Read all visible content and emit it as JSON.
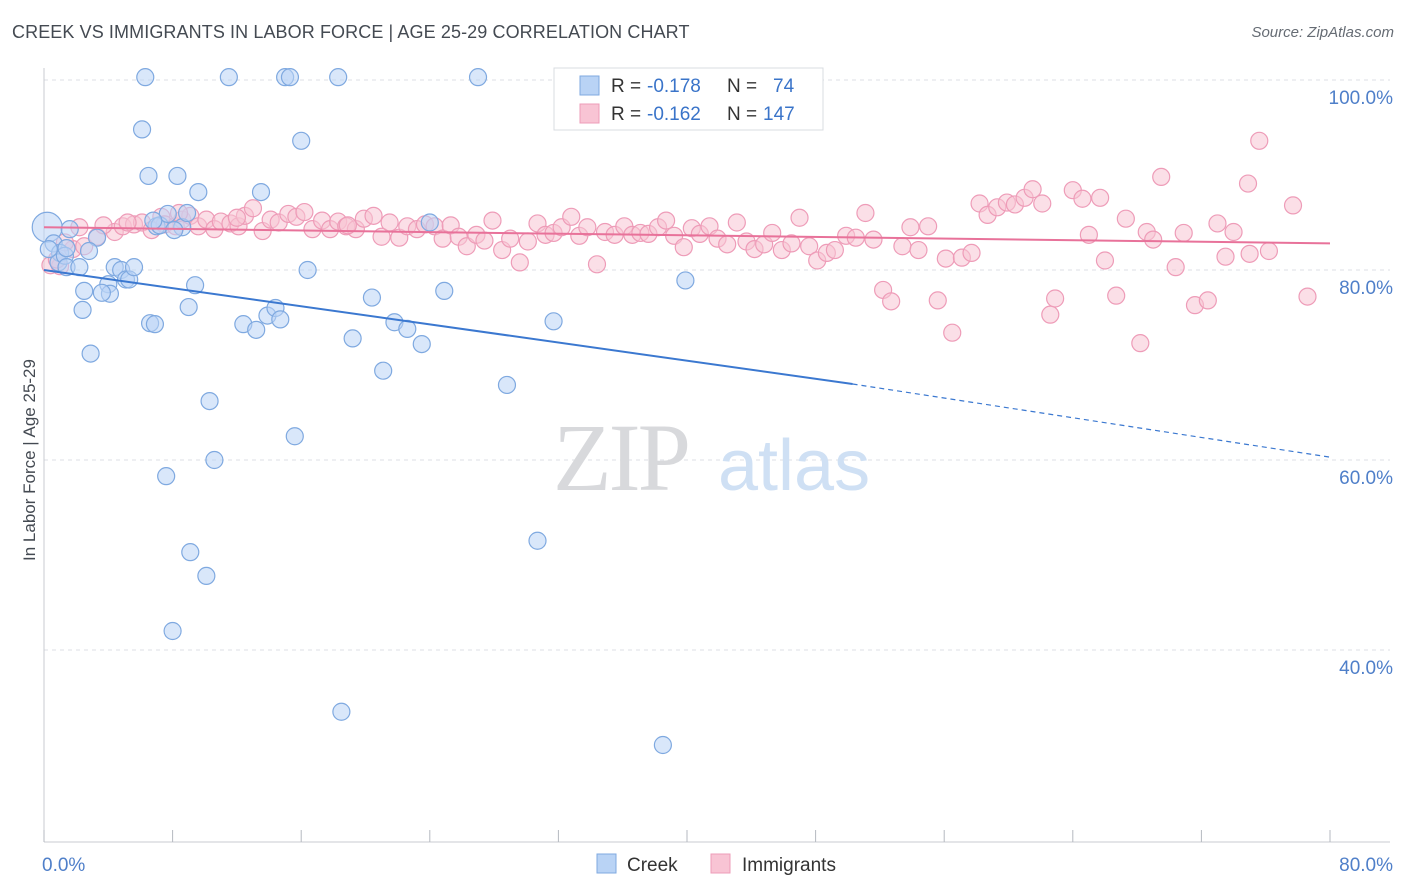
{
  "title": "CREEK VS IMMIGRANTS IN LABOR FORCE | AGE 25-29 CORRELATION CHART",
  "source": "Source: ZipAtlas.com",
  "watermark": {
    "zip": "ZIP",
    "atlas": "atlas"
  },
  "colors": {
    "creek_fill": "#b9d3f5",
    "creek_stroke": "#7fa9e0",
    "creek_line": "#3b78d0",
    "imm_fill": "#f8c4d4",
    "imm_stroke": "#ee9cb8",
    "imm_line": "#e8729a",
    "grid": "#dcdfe4",
    "tick_label": "#4f7fc9"
  },
  "legend": {
    "r_label": "R =",
    "n_label": "N =",
    "rows": [
      {
        "series": "creek",
        "r": "-0.178",
        "n": "74"
      },
      {
        "series": "imm",
        "r": "-0.162",
        "n": "147"
      }
    ]
  },
  "bottom_legend": [
    {
      "series": "creek",
      "label": "Creek"
    },
    {
      "series": "imm",
      "label": "Immigrants"
    }
  ],
  "chart_data": {
    "type": "scatter",
    "title": "CREEK VS IMMIGRANTS IN LABOR FORCE | AGE 25-29 CORRELATION CHART",
    "xlabel": "",
    "ylabel": "In Labor Force | Age 25-29",
    "xlim": [
      0,
      80
    ],
    "ylim": [
      20,
      104
    ],
    "x_tick_labels": [
      {
        "v": 0,
        "label": "0.0%"
      },
      {
        "v": 80,
        "label": "80.0%"
      }
    ],
    "y_tick_labels": [
      {
        "v": 100,
        "label": "100.0%"
      },
      {
        "v": 80,
        "label": "80.0%"
      },
      {
        "v": 60,
        "label": "60.0%"
      },
      {
        "v": 40,
        "label": "40.0%"
      }
    ],
    "y_grid": [
      100,
      80,
      60,
      40
    ],
    "x_minor_ticks": [
      0,
      8,
      16,
      24,
      32,
      40,
      48,
      56,
      64,
      72,
      80
    ],
    "series": [
      {
        "name": "Creek",
        "key": "creek",
        "trend": {
          "x0": 0,
          "y0": 80,
          "x1": 50.3,
          "y1": 68,
          "dash_x1": 80,
          "dash_y1": 60.3
        },
        "points": [
          [
            0.2,
            84.5
          ],
          [
            0.6,
            82.8
          ],
          [
            1.0,
            81.8
          ],
          [
            0.9,
            80.8
          ],
          [
            1.3,
            81.5
          ],
          [
            1.6,
            84.3
          ],
          [
            1.4,
            80.3
          ],
          [
            2.2,
            80.3
          ],
          [
            3.3,
            83.4
          ],
          [
            2.8,
            82.0
          ],
          [
            2.5,
            77.8
          ],
          [
            4.0,
            78.5
          ],
          [
            4.4,
            80.3
          ],
          [
            4.1,
            77.5
          ],
          [
            3.6,
            77.6
          ],
          [
            4.8,
            80.0
          ],
          [
            5.1,
            79.0
          ],
          [
            5.3,
            79.0
          ],
          [
            5.6,
            80.3
          ],
          [
            2.4,
            75.8
          ],
          [
            2.9,
            71.2
          ],
          [
            6.1,
            94.8
          ],
          [
            6.3,
            100.3
          ],
          [
            6.5,
            89.9
          ],
          [
            6.6,
            74.4
          ],
          [
            6.9,
            74.3
          ],
          [
            7.0,
            84.6
          ],
          [
            7.2,
            84.7
          ],
          [
            7.7,
            85.9
          ],
          [
            8.3,
            89.9
          ],
          [
            8.6,
            84.5
          ],
          [
            8.9,
            86.0
          ],
          [
            9.6,
            88.2
          ],
          [
            9.0,
            76.1
          ],
          [
            9.4,
            78.4
          ],
          [
            10.3,
            66.2
          ],
          [
            10.6,
            60.0
          ],
          [
            7.6,
            58.3
          ],
          [
            9.1,
            50.3
          ],
          [
            10.1,
            47.8
          ],
          [
            8.0,
            42.0
          ],
          [
            11.5,
            100.3
          ],
          [
            12.4,
            74.3
          ],
          [
            13.2,
            73.7
          ],
          [
            13.5,
            88.2
          ],
          [
            13.9,
            75.2
          ],
          [
            14.4,
            76.0
          ],
          [
            14.7,
            74.8
          ],
          [
            15.0,
            100.3
          ],
          [
            15.3,
            100.3
          ],
          [
            15.6,
            62.5
          ],
          [
            16.0,
            93.6
          ],
          [
            16.4,
            80.0
          ],
          [
            18.3,
            100.3
          ],
          [
            18.5,
            33.5
          ],
          [
            19.2,
            72.8
          ],
          [
            20.4,
            77.1
          ],
          [
            21.1,
            69.4
          ],
          [
            21.8,
            74.5
          ],
          [
            22.6,
            73.8
          ],
          [
            23.5,
            72.2
          ],
          [
            24.0,
            85.0
          ],
          [
            24.9,
            77.8
          ],
          [
            27.0,
            100.3
          ],
          [
            28.8,
            67.9
          ],
          [
            30.7,
            51.5
          ],
          [
            31.7,
            74.6
          ],
          [
            38.5,
            30.0
          ],
          [
            39.9,
            78.9
          ],
          [
            1.4,
            82.3
          ],
          [
            8.1,
            84.2
          ],
          [
            6.8,
            85.2
          ],
          [
            44.8,
            100.3
          ],
          [
            0.3,
            82.2
          ]
        ]
      },
      {
        "name": "Immigrants",
        "key": "imm",
        "trend": {
          "x0": 0,
          "y0": 84.5,
          "x1": 80,
          "y1": 82.8
        },
        "points": [
          [
            0.4,
            80.5
          ],
          [
            1.0,
            80.4
          ],
          [
            1.8,
            82.2
          ],
          [
            2.5,
            82.5
          ],
          [
            3.3,
            83.5
          ],
          [
            4.4,
            84.0
          ],
          [
            4.9,
            84.6
          ],
          [
            5.6,
            84.8
          ],
          [
            6.1,
            85.0
          ],
          [
            6.7,
            84.2
          ],
          [
            7.3,
            85.6
          ],
          [
            7.5,
            84.8
          ],
          [
            8.2,
            84.6
          ],
          [
            8.6,
            85.3
          ],
          [
            9.1,
            85.7
          ],
          [
            9.6,
            84.6
          ],
          [
            10.1,
            85.3
          ],
          [
            10.6,
            84.3
          ],
          [
            11.0,
            85.1
          ],
          [
            11.6,
            84.9
          ],
          [
            12.1,
            84.6
          ],
          [
            12.5,
            85.7
          ],
          [
            13.0,
            86.5
          ],
          [
            13.6,
            84.1
          ],
          [
            14.1,
            85.3
          ],
          [
            14.6,
            85.0
          ],
          [
            15.2,
            85.9
          ],
          [
            15.7,
            85.6
          ],
          [
            16.2,
            86.1
          ],
          [
            16.7,
            84.3
          ],
          [
            17.3,
            85.2
          ],
          [
            17.8,
            84.3
          ],
          [
            18.3,
            85.1
          ],
          [
            18.8,
            84.6
          ],
          [
            19.4,
            84.3
          ],
          [
            19.9,
            85.4
          ],
          [
            20.5,
            85.7
          ],
          [
            21.0,
            83.5
          ],
          [
            21.5,
            85.0
          ],
          [
            22.1,
            83.4
          ],
          [
            22.6,
            84.6
          ],
          [
            23.2,
            84.3
          ],
          [
            23.7,
            84.8
          ],
          [
            24.3,
            84.6
          ],
          [
            24.8,
            83.3
          ],
          [
            25.3,
            84.7
          ],
          [
            25.8,
            83.5
          ],
          [
            26.3,
            82.5
          ],
          [
            26.9,
            83.7
          ],
          [
            27.4,
            83.1
          ],
          [
            27.9,
            85.2
          ],
          [
            28.5,
            82.1
          ],
          [
            29.0,
            83.3
          ],
          [
            29.6,
            80.8
          ],
          [
            30.1,
            83.0
          ],
          [
            30.7,
            84.9
          ],
          [
            31.2,
            83.7
          ],
          [
            31.7,
            83.9
          ],
          [
            32.2,
            84.5
          ],
          [
            32.8,
            85.6
          ],
          [
            33.3,
            83.6
          ],
          [
            33.8,
            84.5
          ],
          [
            34.4,
            80.6
          ],
          [
            34.9,
            84.0
          ],
          [
            35.5,
            83.7
          ],
          [
            36.1,
            84.6
          ],
          [
            36.6,
            83.7
          ],
          [
            37.1,
            83.9
          ],
          [
            37.6,
            83.8
          ],
          [
            38.2,
            84.5
          ],
          [
            38.7,
            85.2
          ],
          [
            39.2,
            83.6
          ],
          [
            39.8,
            82.4
          ],
          [
            40.3,
            84.4
          ],
          [
            40.8,
            83.8
          ],
          [
            41.4,
            84.6
          ],
          [
            41.9,
            83.3
          ],
          [
            42.5,
            82.7
          ],
          [
            43.1,
            85.0
          ],
          [
            43.7,
            83.0
          ],
          [
            44.2,
            82.2
          ],
          [
            44.8,
            82.7
          ],
          [
            45.3,
            83.9
          ],
          [
            45.9,
            82.1
          ],
          [
            46.5,
            82.8
          ],
          [
            47.0,
            85.5
          ],
          [
            47.6,
            82.5
          ],
          [
            48.1,
            81.0
          ],
          [
            48.7,
            81.8
          ],
          [
            49.2,
            82.1
          ],
          [
            49.9,
            83.6
          ],
          [
            50.5,
            83.4
          ],
          [
            51.1,
            86.0
          ],
          [
            51.6,
            83.2
          ],
          [
            52.2,
            77.9
          ],
          [
            52.7,
            76.7
          ],
          [
            53.4,
            82.5
          ],
          [
            53.9,
            84.5
          ],
          [
            54.4,
            82.1
          ],
          [
            55.0,
            84.6
          ],
          [
            55.6,
            76.8
          ],
          [
            56.1,
            81.2
          ],
          [
            56.5,
            73.4
          ],
          [
            57.1,
            81.3
          ],
          [
            57.7,
            81.8
          ],
          [
            58.2,
            87.0
          ],
          [
            58.7,
            85.8
          ],
          [
            59.3,
            86.6
          ],
          [
            59.9,
            87.1
          ],
          [
            60.4,
            86.9
          ],
          [
            61.0,
            87.6
          ],
          [
            61.5,
            88.5
          ],
          [
            62.1,
            87.0
          ],
          [
            62.6,
            75.3
          ],
          [
            62.9,
            77.0
          ],
          [
            64.0,
            88.4
          ],
          [
            64.6,
            87.5
          ],
          [
            65.0,
            83.7
          ],
          [
            65.7,
            87.6
          ],
          [
            66.0,
            81.0
          ],
          [
            66.7,
            77.3
          ],
          [
            67.3,
            85.4
          ],
          [
            68.2,
            72.3
          ],
          [
            68.6,
            84.0
          ],
          [
            69.0,
            83.2
          ],
          [
            69.5,
            89.8
          ],
          [
            70.4,
            80.3
          ],
          [
            70.9,
            83.9
          ],
          [
            71.6,
            76.3
          ],
          [
            72.4,
            76.8
          ],
          [
            73.0,
            84.9
          ],
          [
            73.5,
            81.4
          ],
          [
            74.0,
            84.0
          ],
          [
            74.9,
            89.1
          ],
          [
            75.0,
            81.7
          ],
          [
            75.6,
            93.6
          ],
          [
            78.6,
            77.2
          ],
          [
            77.7,
            86.8
          ],
          [
            76.2,
            82.0
          ],
          [
            0.8,
            81.1
          ],
          [
            1.3,
            82.9
          ],
          [
            2.2,
            84.5
          ],
          [
            3.7,
            84.7
          ],
          [
            5.2,
            85.0
          ],
          [
            8.4,
            86.0
          ],
          [
            12.0,
            85.5
          ],
          [
            18.9,
            84.7
          ]
        ]
      }
    ]
  }
}
